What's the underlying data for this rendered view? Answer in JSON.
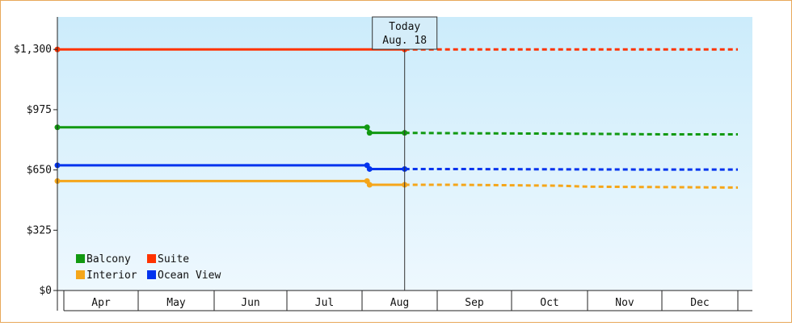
{
  "chart_data": {
    "type": "line",
    "x_categories": [
      "Apr",
      "May",
      "Jun",
      "Jul",
      "Aug",
      "Sep",
      "Oct",
      "Nov",
      "Dec"
    ],
    "y_ticks": [
      {
        "value": 0,
        "label": "$0"
      },
      {
        "value": 325,
        "label": "$325"
      },
      {
        "value": 650,
        "label": "$650"
      },
      {
        "value": 975,
        "label": "$975"
      },
      {
        "value": 1300,
        "label": "$1,300"
      }
    ],
    "ylim": [
      0,
      1475
    ],
    "today_marker": {
      "line1": "Today",
      "line2": "Aug. 18"
    },
    "series": [
      {
        "name": "Suite",
        "color": "#ff3300",
        "points": [
          [
            "Apr 1",
            1300
          ],
          [
            "Aug 18",
            1300
          ]
        ],
        "forecast": [
          [
            "Aug 18",
            1300
          ],
          [
            "Dec 31",
            1300
          ]
        ]
      },
      {
        "name": "Balcony",
        "color": "#119911",
        "points": [
          [
            "Apr 1",
            880
          ],
          [
            "Aug 3",
            880
          ],
          [
            "Aug 4",
            850
          ],
          [
            "Aug 18",
            850
          ]
        ],
        "forecast": [
          [
            "Aug 18",
            850
          ],
          [
            "Sep 8",
            848
          ],
          [
            "Nov 1",
            845
          ],
          [
            "Dec 1",
            842
          ],
          [
            "Dec 31",
            842
          ]
        ]
      },
      {
        "name": "Ocean View",
        "color": "#0033ee",
        "points": [
          [
            "Apr 1",
            675
          ],
          [
            "Aug 3",
            675
          ],
          [
            "Aug 4",
            655
          ],
          [
            "Aug 18",
            655
          ]
        ],
        "forecast": [
          [
            "Aug 18",
            655
          ],
          [
            "Sep 8",
            655
          ],
          [
            "Nov 1",
            653
          ],
          [
            "Dec 1",
            652
          ],
          [
            "Dec 31",
            652
          ]
        ]
      },
      {
        "name": "Interior",
        "color": "#f5a61a",
        "points": [
          [
            "Apr 1",
            590
          ],
          [
            "Aug 3",
            590
          ],
          [
            "Aug 4",
            570
          ],
          [
            "Aug 18",
            570
          ]
        ],
        "forecast": [
          [
            "Aug 18",
            570
          ],
          [
            "Sep 8",
            570
          ],
          [
            "Oct 20",
            565
          ],
          [
            "Nov 1",
            560
          ],
          [
            "Dec 31",
            555
          ]
        ]
      }
    ],
    "legend": [
      {
        "name": "Balcony",
        "color": "#119911"
      },
      {
        "name": "Suite",
        "color": "#ff3300"
      },
      {
        "name": "Interior",
        "color": "#f5a61a"
      },
      {
        "name": "Ocean View",
        "color": "#0033ee"
      }
    ],
    "legend_position": "bottom-left",
    "background_gradient": [
      "#ccecfb",
      "#eef8fe"
    ]
  }
}
